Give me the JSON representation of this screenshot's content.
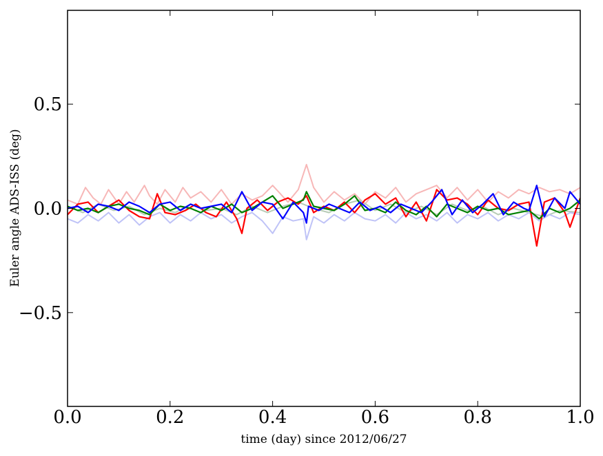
{
  "chart_data": {
    "type": "line",
    "title": "",
    "xlabel": "time (day) since 2012/06/27",
    "ylabel": "Euler angle ADS-ISS (deg)",
    "xlim": [
      0.0,
      1.0
    ],
    "ylim": [
      -0.95,
      0.95
    ],
    "grid": false,
    "x_ticks": [
      {
        "value": 0.0,
        "label": "0.0"
      },
      {
        "value": 0.2,
        "label": "0.2"
      },
      {
        "value": 0.4,
        "label": "0.4"
      },
      {
        "value": 0.6,
        "label": "0.6"
      },
      {
        "value": 0.8,
        "label": "0.8"
      },
      {
        "value": 1.0,
        "label": "1.0"
      }
    ],
    "y_ticks": [
      {
        "value": -0.5,
        "label": "−0.5"
      },
      {
        "value": 0.0,
        "label": "0.0"
      },
      {
        "value": 0.5,
        "label": "0.5"
      }
    ],
    "series": [
      {
        "color": "#f7b7b7",
        "width": 2,
        "x": [
          0.0,
          0.02,
          0.035,
          0.05,
          0.065,
          0.08,
          0.1,
          0.115,
          0.13,
          0.15,
          0.16,
          0.175,
          0.19,
          0.21,
          0.225,
          0.24,
          0.26,
          0.28,
          0.3,
          0.32,
          0.34,
          0.36,
          0.38,
          0.4,
          0.415,
          0.43,
          0.45,
          0.466,
          0.48,
          0.5,
          0.52,
          0.54,
          0.56,
          0.58,
          0.6,
          0.62,
          0.64,
          0.66,
          0.68,
          0.7,
          0.72,
          0.74,
          0.76,
          0.78,
          0.8,
          0.82,
          0.84,
          0.86,
          0.88,
          0.9,
          0.92,
          0.94,
          0.96,
          0.98,
          1.0
        ],
        "y": [
          0.04,
          0.02,
          0.1,
          0.05,
          0.02,
          0.09,
          0.02,
          0.08,
          0.03,
          0.11,
          0.06,
          0.02,
          0.09,
          0.03,
          0.1,
          0.05,
          0.08,
          0.03,
          0.09,
          0.02,
          0.07,
          0.04,
          0.06,
          0.11,
          0.07,
          0.03,
          0.09,
          0.21,
          0.1,
          0.03,
          0.08,
          0.04,
          0.07,
          0.02,
          0.08,
          0.05,
          0.1,
          0.03,
          0.07,
          0.09,
          0.11,
          0.05,
          0.1,
          0.04,
          0.09,
          0.03,
          0.08,
          0.05,
          0.09,
          0.07,
          0.1,
          0.08,
          0.09,
          0.07,
          0.1
        ]
      },
      {
        "color": "#b7ccb7",
        "width": 2,
        "x": [
          0.0,
          0.03,
          0.06,
          0.09,
          0.12,
          0.15,
          0.18,
          0.21,
          0.24,
          0.27,
          0.3,
          0.33,
          0.36,
          0.39,
          0.42,
          0.45,
          0.48,
          0.51,
          0.54,
          0.57,
          0.6,
          0.63,
          0.66,
          0.69,
          0.72,
          0.75,
          0.78,
          0.81,
          0.84,
          0.87,
          0.9,
          0.93,
          0.96,
          1.0
        ],
        "y": [
          0.01,
          -0.02,
          0.02,
          -0.01,
          0.01,
          -0.03,
          0.0,
          -0.02,
          0.02,
          -0.01,
          0.0,
          -0.03,
          0.01,
          -0.02,
          0.01,
          0.03,
          0.0,
          -0.02,
          0.02,
          0.04,
          -0.01,
          0.02,
          -0.02,
          0.01,
          -0.03,
          0.02,
          -0.01,
          0.01,
          -0.03,
          0.0,
          -0.02,
          -0.04,
          -0.01,
          -0.02
        ]
      },
      {
        "color": "#bfc3f7",
        "width": 2,
        "x": [
          0.0,
          0.02,
          0.04,
          0.06,
          0.08,
          0.1,
          0.12,
          0.14,
          0.16,
          0.18,
          0.2,
          0.22,
          0.24,
          0.26,
          0.28,
          0.3,
          0.32,
          0.34,
          0.36,
          0.38,
          0.4,
          0.42,
          0.44,
          0.46,
          0.466,
          0.48,
          0.5,
          0.52,
          0.54,
          0.56,
          0.58,
          0.6,
          0.62,
          0.64,
          0.66,
          0.68,
          0.7,
          0.72,
          0.74,
          0.76,
          0.78,
          0.8,
          0.82,
          0.84,
          0.86,
          0.88,
          0.9,
          0.92,
          0.94,
          0.96,
          0.98,
          1.0
        ],
        "y": [
          -0.05,
          -0.07,
          -0.03,
          -0.06,
          -0.02,
          -0.07,
          -0.03,
          -0.08,
          -0.04,
          -0.02,
          -0.07,
          -0.03,
          -0.06,
          -0.02,
          -0.05,
          -0.03,
          -0.07,
          -0.04,
          -0.02,
          -0.06,
          -0.12,
          -0.04,
          -0.06,
          -0.05,
          -0.15,
          -0.04,
          -0.07,
          -0.03,
          -0.06,
          -0.02,
          -0.05,
          -0.06,
          -0.03,
          -0.07,
          -0.02,
          -0.05,
          -0.03,
          -0.06,
          -0.02,
          -0.07,
          -0.03,
          -0.05,
          -0.02,
          -0.06,
          -0.03,
          -0.05,
          -0.02,
          -0.06,
          -0.03,
          -0.05,
          -0.02,
          -0.03
        ]
      },
      {
        "color": "#ff0000",
        "width": 2.2,
        "x": [
          0.0,
          0.02,
          0.04,
          0.06,
          0.08,
          0.1,
          0.12,
          0.14,
          0.16,
          0.175,
          0.19,
          0.21,
          0.23,
          0.25,
          0.27,
          0.29,
          0.31,
          0.33,
          0.34,
          0.35,
          0.37,
          0.39,
          0.41,
          0.43,
          0.45,
          0.466,
          0.48,
          0.5,
          0.52,
          0.54,
          0.56,
          0.58,
          0.6,
          0.62,
          0.64,
          0.66,
          0.68,
          0.7,
          0.72,
          0.74,
          0.76,
          0.78,
          0.8,
          0.82,
          0.84,
          0.86,
          0.88,
          0.9,
          0.915,
          0.93,
          0.95,
          0.97,
          0.98,
          1.0
        ],
        "y": [
          -0.03,
          0.02,
          0.03,
          -0.02,
          0.01,
          0.04,
          -0.01,
          -0.04,
          -0.05,
          0.07,
          -0.02,
          -0.03,
          -0.01,
          0.02,
          -0.02,
          -0.04,
          0.03,
          -0.05,
          -0.12,
          0.0,
          0.04,
          -0.01,
          0.03,
          0.05,
          0.02,
          0.06,
          -0.02,
          0.01,
          -0.01,
          0.03,
          -0.02,
          0.04,
          0.07,
          0.02,
          0.05,
          -0.04,
          0.03,
          -0.06,
          0.09,
          0.04,
          0.05,
          0.02,
          -0.03,
          0.04,
          0.0,
          -0.01,
          0.02,
          0.03,
          -0.18,
          0.03,
          0.05,
          -0.02,
          -0.09,
          0.05
        ]
      },
      {
        "color": "#008000",
        "width": 2.2,
        "x": [
          0.0,
          0.02,
          0.04,
          0.06,
          0.08,
          0.1,
          0.12,
          0.14,
          0.16,
          0.18,
          0.2,
          0.22,
          0.24,
          0.26,
          0.28,
          0.3,
          0.32,
          0.34,
          0.36,
          0.38,
          0.4,
          0.42,
          0.44,
          0.46,
          0.466,
          0.48,
          0.5,
          0.52,
          0.54,
          0.56,
          0.58,
          0.6,
          0.62,
          0.64,
          0.66,
          0.68,
          0.7,
          0.72,
          0.74,
          0.76,
          0.78,
          0.8,
          0.82,
          0.84,
          0.86,
          0.88,
          0.9,
          0.92,
          0.94,
          0.96,
          0.98,
          1.0
        ],
        "y": [
          0.01,
          -0.01,
          0.0,
          -0.02,
          0.01,
          0.02,
          0.0,
          -0.01,
          -0.03,
          0.02,
          -0.01,
          0.01,
          0.0,
          -0.02,
          0.01,
          -0.01,
          0.02,
          -0.02,
          0.0,
          0.03,
          0.06,
          0.0,
          0.02,
          0.04,
          0.08,
          0.01,
          0.0,
          -0.01,
          0.02,
          0.06,
          -0.01,
          0.0,
          -0.02,
          0.03,
          -0.01,
          -0.03,
          0.01,
          -0.04,
          0.02,
          0.0,
          -0.02,
          0.01,
          -0.01,
          0.0,
          -0.03,
          -0.02,
          -0.01,
          -0.05,
          0.0,
          -0.02,
          0.0,
          0.04
        ]
      },
      {
        "color": "#0000ff",
        "width": 2.2,
        "x": [
          0.0,
          0.02,
          0.04,
          0.06,
          0.08,
          0.1,
          0.12,
          0.14,
          0.16,
          0.18,
          0.2,
          0.22,
          0.24,
          0.26,
          0.28,
          0.3,
          0.32,
          0.34,
          0.36,
          0.38,
          0.4,
          0.42,
          0.44,
          0.46,
          0.466,
          0.47,
          0.49,
          0.51,
          0.53,
          0.55,
          0.57,
          0.59,
          0.61,
          0.63,
          0.65,
          0.67,
          0.69,
          0.71,
          0.73,
          0.75,
          0.77,
          0.79,
          0.81,
          0.83,
          0.85,
          0.87,
          0.89,
          0.9,
          0.915,
          0.93,
          0.95,
          0.97,
          0.98,
          1.0
        ],
        "y": [
          0.0,
          0.01,
          -0.02,
          0.02,
          0.01,
          -0.01,
          0.03,
          0.01,
          -0.02,
          0.02,
          0.03,
          -0.01,
          0.02,
          0.0,
          0.01,
          0.02,
          -0.02,
          0.08,
          -0.01,
          0.03,
          0.02,
          -0.05,
          0.03,
          -0.02,
          -0.07,
          0.01,
          -0.01,
          0.02,
          0.0,
          -0.02,
          0.03,
          -0.01,
          0.01,
          -0.02,
          0.02,
          0.0,
          -0.02,
          0.03,
          0.09,
          -0.03,
          0.04,
          -0.02,
          0.02,
          0.07,
          -0.03,
          0.03,
          0.0,
          -0.01,
          0.11,
          -0.04,
          0.05,
          0.0,
          0.08,
          0.02
        ]
      }
    ]
  }
}
